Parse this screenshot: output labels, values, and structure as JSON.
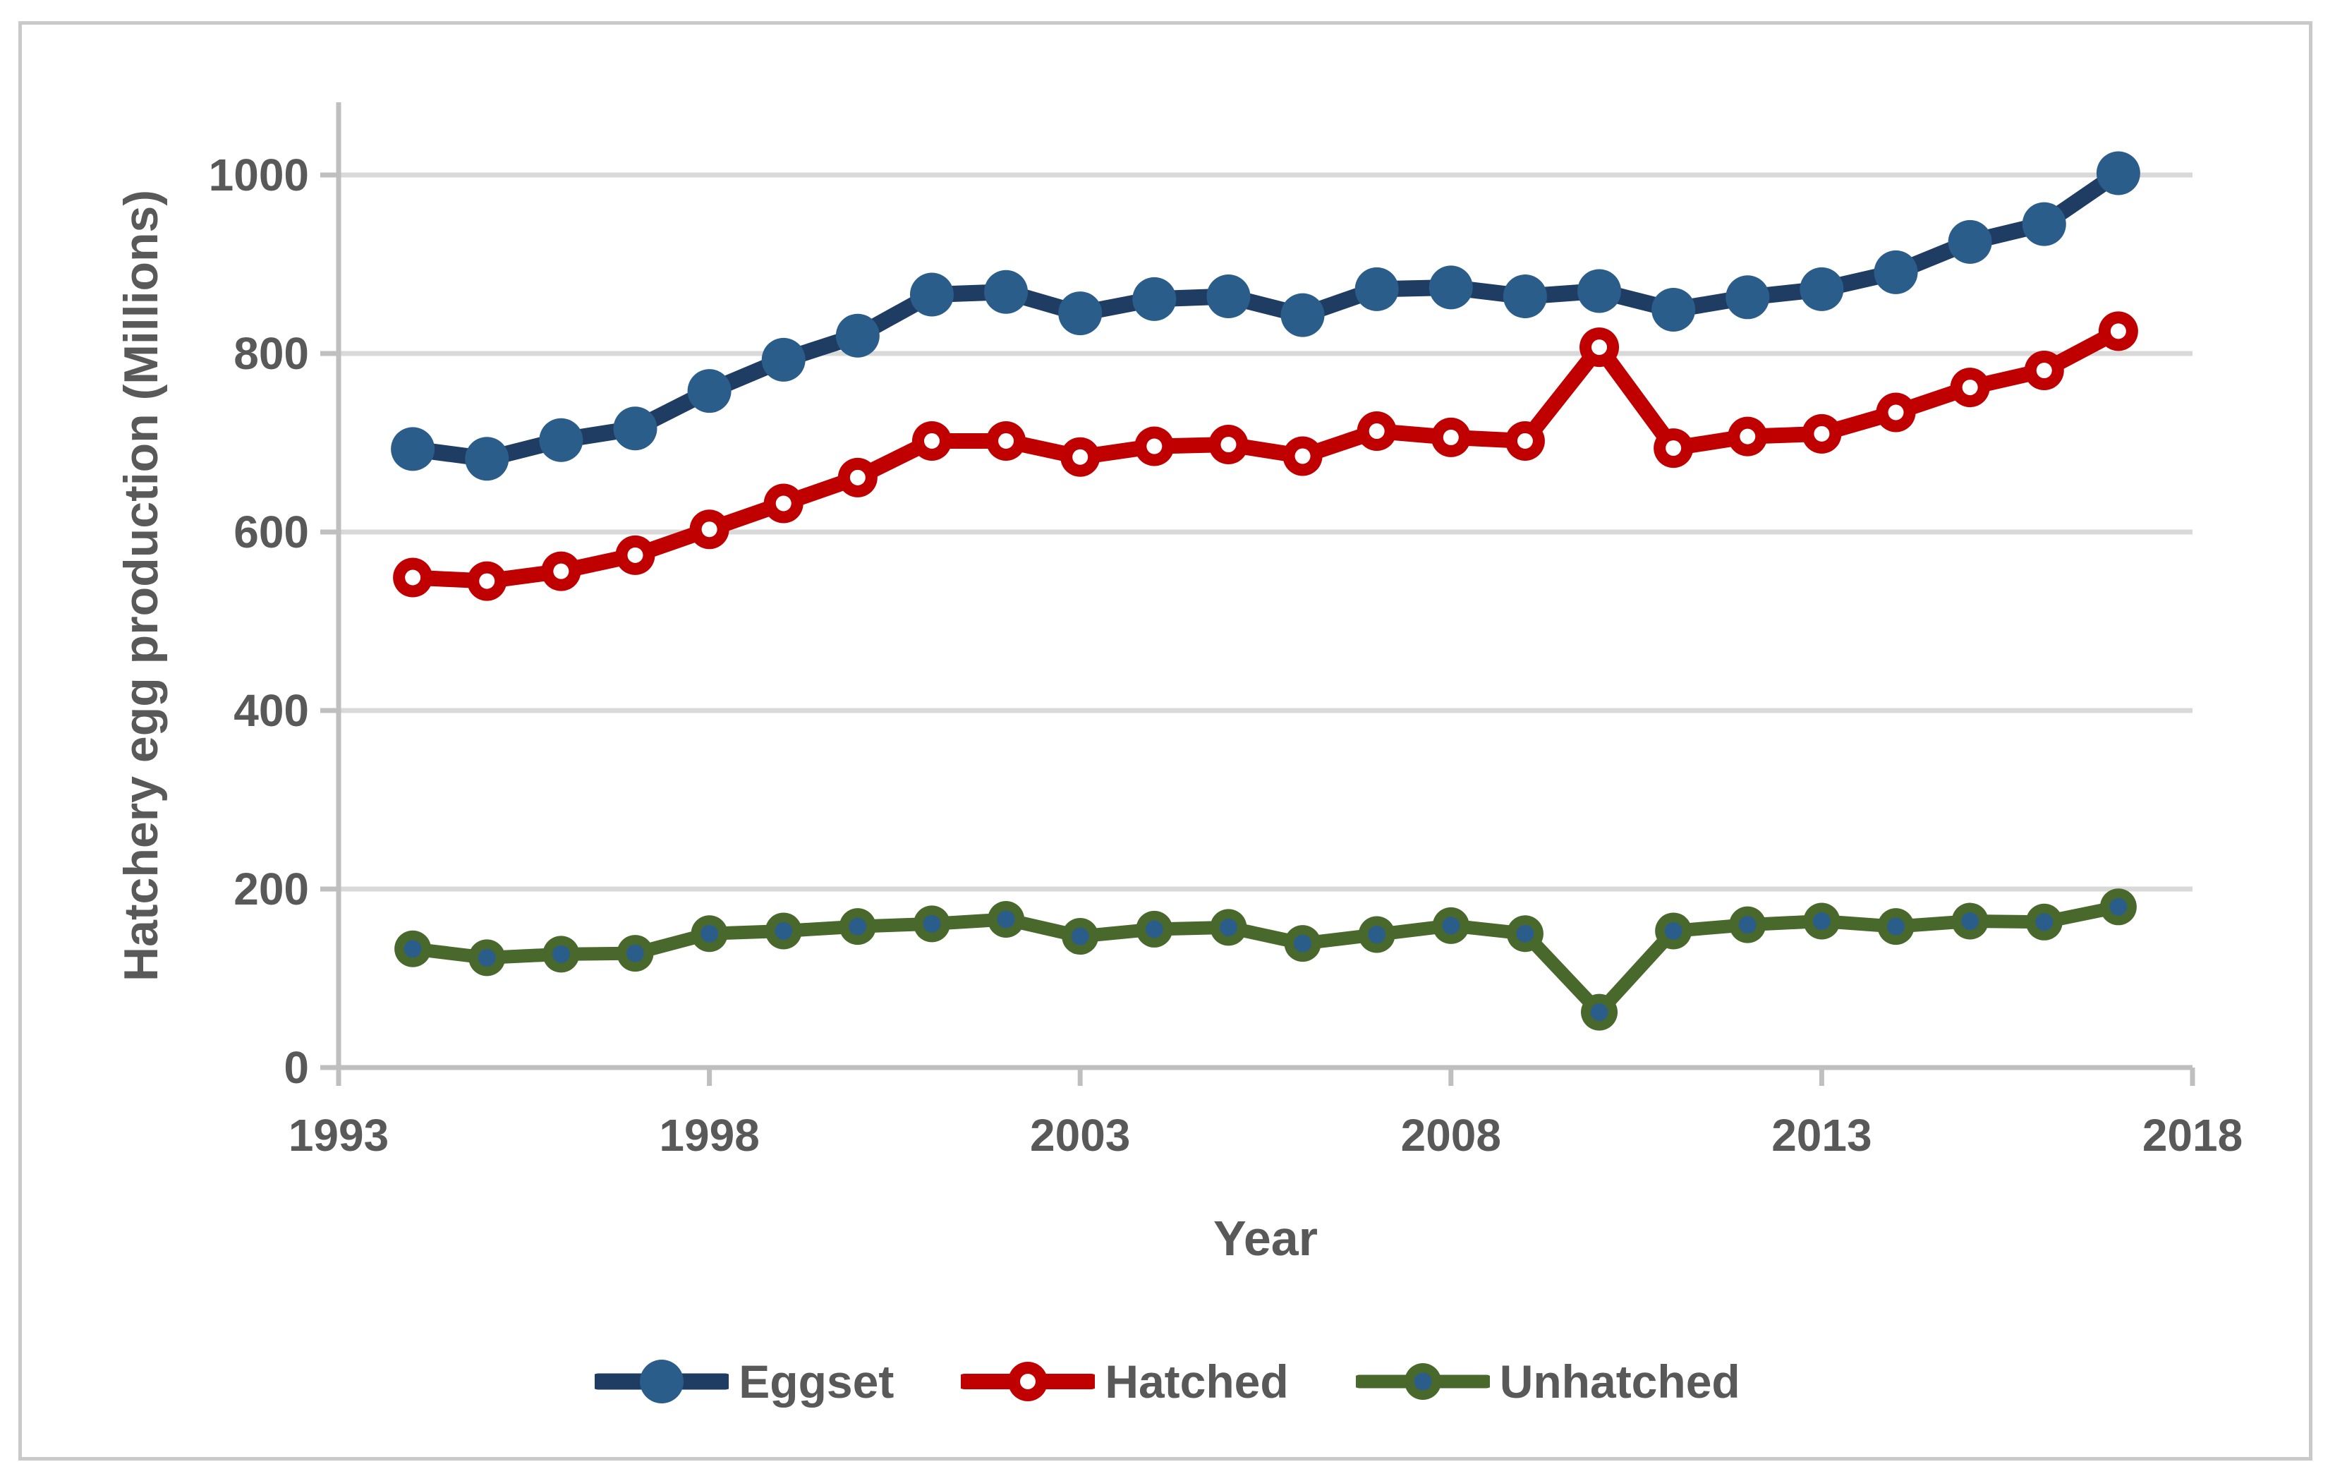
{
  "chart_data": {
    "type": "line",
    "title": "",
    "xlabel": "Year",
    "ylabel": "Hatchery egg production (Millions)",
    "x": [
      1994,
      1995,
      1996,
      1997,
      1998,
      1999,
      2000,
      2001,
      2002,
      2003,
      2004,
      2005,
      2006,
      2007,
      2008,
      2009,
      2010,
      2011,
      2012,
      2013,
      2014,
      2015,
      2016,
      2017
    ],
    "series": [
      {
        "name": "Eggset",
        "line_color": "#1F3C63",
        "line_width": 23,
        "marker": {
          "style": "filled",
          "fill": "#2A5D8A"
        },
        "values": [
          693,
          682,
          703,
          716,
          758,
          793,
          820,
          866,
          869,
          845,
          861,
          864,
          843,
          872,
          874,
          864,
          870,
          849,
          863,
          872,
          891,
          925,
          945,
          1002
        ]
      },
      {
        "name": "Hatched",
        "line_color": "#C00000",
        "line_width": 22,
        "marker": {
          "style": "donut",
          "ring": "#C00000",
          "center": "#FFFFFF"
        },
        "values": [
          549,
          545,
          556,
          574,
          603,
          632,
          661,
          702,
          702,
          684,
          696,
          698,
          685,
          713,
          706,
          702,
          807,
          694,
          707,
          710,
          734,
          762,
          781,
          825
        ]
      },
      {
        "name": "Unhatched",
        "line_color": "#49682C",
        "line_width": 19,
        "marker": {
          "style": "dot",
          "fill": "#49682C",
          "center": "#2A5D8A"
        },
        "values": [
          133,
          123,
          127,
          128,
          150,
          153,
          158,
          161,
          166,
          147,
          155,
          157,
          139,
          149,
          159,
          150,
          62,
          153,
          160,
          164,
          158,
          164,
          163,
          180
        ]
      }
    ],
    "xlim": [
      1993,
      2018
    ],
    "ylim": [
      0,
      1000
    ],
    "xticks": [
      1993,
      1998,
      2003,
      2008,
      2013,
      2018
    ],
    "yticks": [
      0,
      200,
      400,
      600,
      800,
      1000
    ],
    "grid": "horizontal-only",
    "legend_position": "bottom-center",
    "styles": {
      "grid_color": "#D9D9D9",
      "axis_color": "#BFBFBF",
      "tick_text_color": "#595959",
      "border_color": "#C9C9C9",
      "background": "#FFFFFF",
      "tick_font_size": 64
    }
  }
}
